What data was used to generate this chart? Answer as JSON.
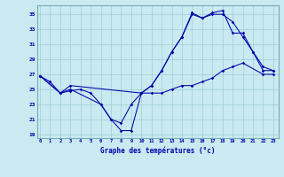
{
  "title": "Graphe des températures (°c)",
  "bg_color": "#c8eaf0",
  "line_color": "#0000aa",
  "grid_color": "#a0ccd8",
  "x_ticks": [
    0,
    1,
    2,
    3,
    4,
    5,
    6,
    7,
    8,
    9,
    10,
    11,
    12,
    13,
    14,
    15,
    16,
    17,
    18,
    19,
    20,
    21,
    22,
    23
  ],
  "y_ticks": [
    19,
    21,
    23,
    25,
    27,
    29,
    31,
    33,
    35
  ],
  "ylim": [
    18.5,
    36.2
  ],
  "xlim": [
    -0.3,
    23.5
  ],
  "line1_x": [
    0,
    1,
    2,
    3,
    4,
    5,
    6,
    7,
    8,
    9,
    10,
    11,
    12,
    13,
    14,
    15,
    16,
    17,
    18,
    19,
    20,
    22,
    23
  ],
  "line1_y": [
    26.8,
    26.0,
    24.5,
    24.8,
    25.0,
    24.5,
    23.0,
    21.0,
    19.5,
    19.5,
    24.5,
    24.5,
    24.5,
    25.0,
    25.5,
    25.5,
    26.0,
    26.5,
    27.5,
    28.0,
    28.5,
    27.0,
    27.0
  ],
  "line2_x": [
    0,
    2,
    3,
    6,
    7,
    8,
    9,
    10,
    11,
    12,
    13,
    14,
    15,
    16,
    17,
    18,
    19,
    20,
    21,
    22,
    23
  ],
  "line2_y": [
    26.8,
    24.5,
    25.0,
    23.0,
    21.0,
    20.5,
    23.0,
    24.5,
    25.5,
    27.5,
    30.0,
    32.0,
    35.0,
    34.5,
    35.0,
    35.0,
    34.0,
    32.0,
    30.0,
    28.0,
    27.5
  ],
  "line3_x": [
    0,
    2,
    3,
    10,
    11,
    12,
    13,
    14,
    15,
    16,
    17,
    18,
    19,
    20,
    21,
    22,
    23
  ],
  "line3_y": [
    26.8,
    24.5,
    25.5,
    24.5,
    25.5,
    27.5,
    30.0,
    32.0,
    35.2,
    34.5,
    35.2,
    35.5,
    32.5,
    32.5,
    30.0,
    27.5,
    27.5
  ]
}
